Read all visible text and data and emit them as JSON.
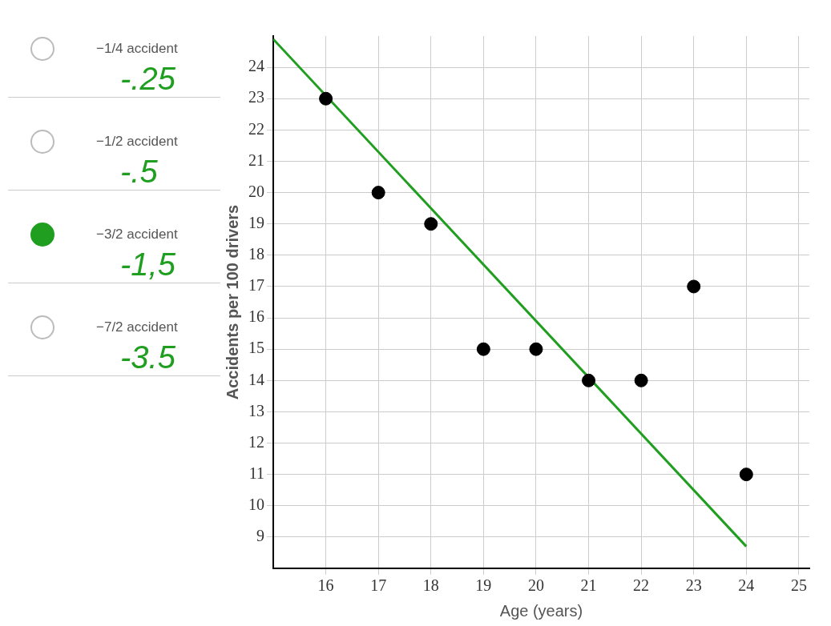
{
  "chart_data": {
    "type": "scatter",
    "xlabel": "Age (years)",
    "ylabel": "Accidents per 100 drivers",
    "x": [
      16,
      17,
      18,
      19,
      20,
      21,
      22,
      23,
      24
    ],
    "series": [
      {
        "color": "#000000",
        "values": [
          23,
          20,
          19,
          15,
          15,
          14,
          14,
          17,
          11
        ]
      },
      {
        "type": "line",
        "x": [
          15,
          24
        ],
        "values": [
          24.9,
          8.7
        ],
        "color": "#1f9e1f",
        "marker": "none"
      }
    ],
    "xlim": [
      15,
      25.2
    ],
    "ylim": [
      8,
      25
    ],
    "xticks": [
      16,
      17,
      18,
      19,
      20,
      21,
      22,
      23,
      24,
      25
    ],
    "yticks": [
      9,
      10,
      11,
      12,
      13,
      14,
      15,
      16,
      17,
      18,
      19,
      20,
      21,
      22,
      23,
      24
    ],
    "grid": true,
    "marker": "circle",
    "annotations": [
      "−1/4 accident",
      "-.25",
      "−1/2 accident",
      "-.5",
      "−3/2 accident",
      "-1,5",
      "−7/2 accident",
      "-3.5"
    ]
  }
}
